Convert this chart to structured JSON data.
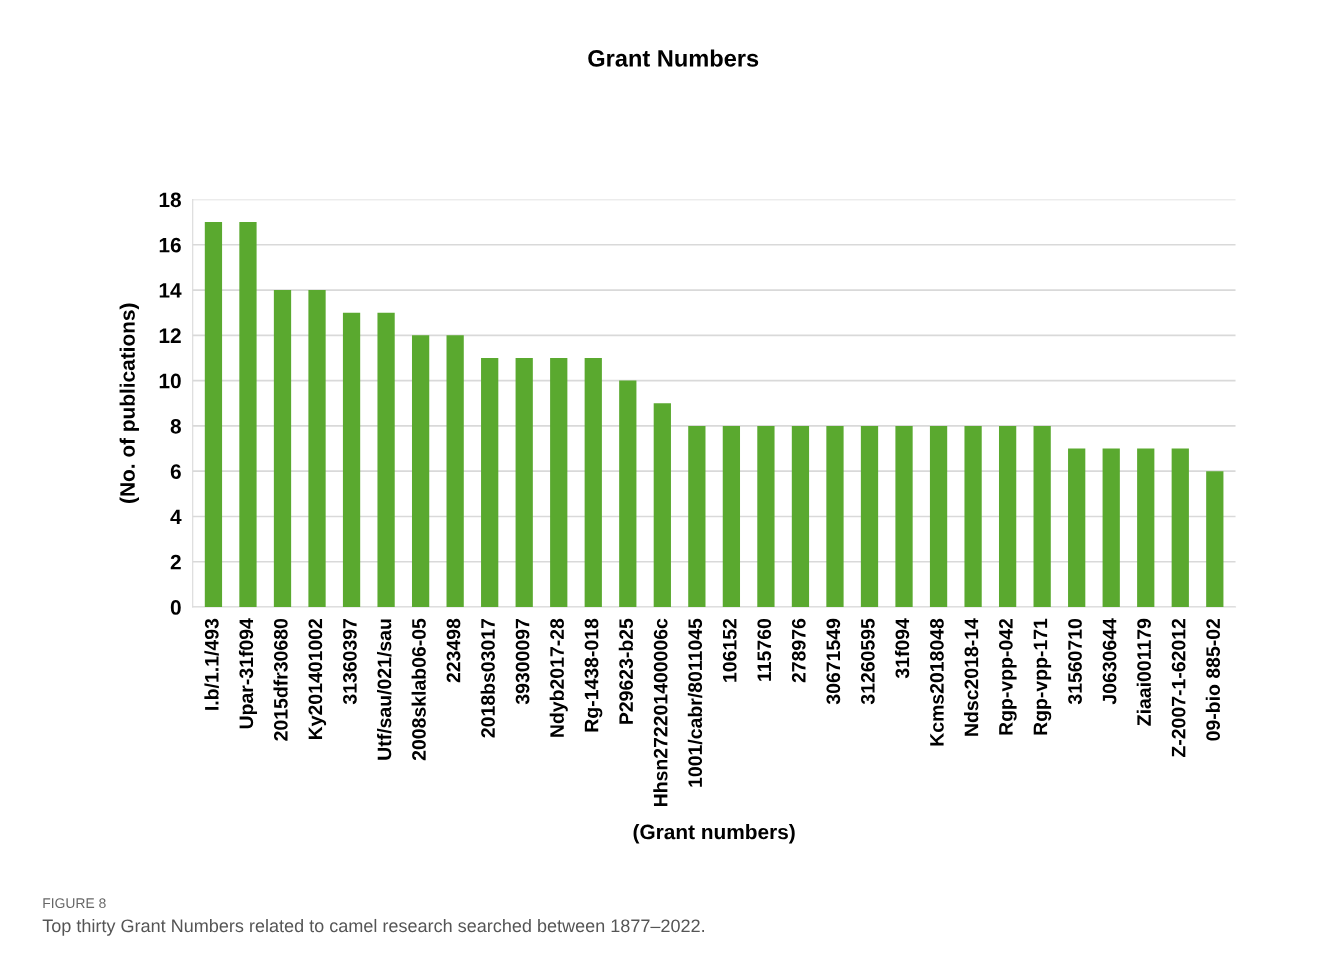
{
  "chart_data": {
    "type": "bar",
    "title": "Grant Numbers",
    "xlabel": "(Grant numbers)",
    "ylabel": "(No. of publications)",
    "categories": [
      "I.b/1.1/493",
      "Upar-31f094",
      "2015dfr30680",
      "Ky201401002",
      "31360397",
      "Utf/sau/021/sau",
      "2008sklab06-05",
      "223498",
      "2018bs03017",
      "39300097",
      "Ndyb2017-28",
      "Rg-1438-018",
      "P29623-b25",
      "Hhsn272201400006c",
      "1001/cabr/8011045",
      "106152",
      "115760",
      "278976",
      "30671549",
      "31260595",
      "31f094",
      "Kcms2018048",
      "Ndsc2018-14",
      "Rgp-vpp-042",
      "Rgp-vpp-171",
      "31560710",
      "J0630644",
      "Ziaai001179",
      "Z-2007-1-62012",
      "09-bio 885-02"
    ],
    "values": [
      17,
      17,
      14,
      14,
      13,
      13,
      12,
      12,
      11,
      11,
      11,
      11,
      10,
      9,
      8,
      8,
      8,
      8,
      8,
      8,
      8,
      8,
      8,
      8,
      8,
      7,
      7,
      7,
      7,
      6
    ],
    "color": "#5aa92f",
    "ylim": [
      0,
      18
    ],
    "yticks": [
      0,
      2,
      4,
      6,
      8,
      10,
      12,
      14,
      16,
      18
    ],
    "grid": "y",
    "annotations": [
      "FIGURE 8",
      "Top thirty Grant Numbers related to camel research searched between 1877–2022."
    ]
  }
}
